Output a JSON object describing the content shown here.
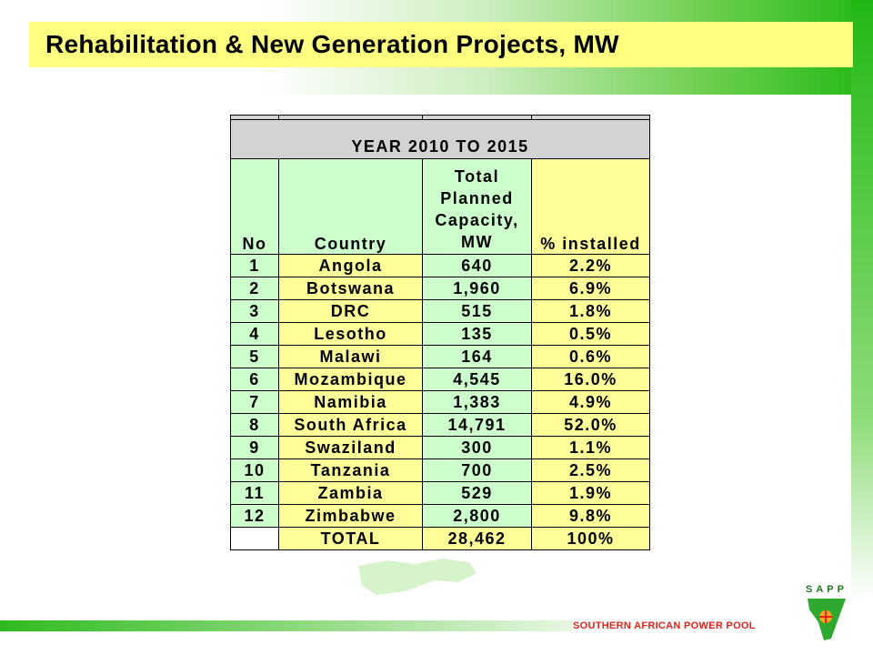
{
  "slide": {
    "title": "Rehabilitation & New Generation Projects, MW",
    "footer": "SOUTHERN AFRICAN POWER POOL",
    "logo_text": "SAPP"
  },
  "colors": {
    "title_bg": "#ffff80",
    "header_green": "#ccffcc",
    "cell_yellow": "#ffff99",
    "value_blue": "#1414e6",
    "percent_red": "#e0141c",
    "brand_green": "#22b814",
    "footer_red": "#e0241c"
  },
  "table": {
    "period": "YEAR 2010 TO 2015",
    "headers": {
      "no": "No",
      "country": "Country",
      "capacity_lines": [
        "Total",
        "Planned",
        "Capacity,",
        "MW"
      ],
      "installed": "% installed"
    },
    "rows": [
      {
        "no": "1",
        "country": "Angola",
        "capacity": "640",
        "installed": "2.2%"
      },
      {
        "no": "2",
        "country": "Botswana",
        "capacity": "1,960",
        "installed": "6.9%"
      },
      {
        "no": "3",
        "country": "DRC",
        "capacity": "515",
        "installed": "1.8%"
      },
      {
        "no": "4",
        "country": "Lesotho",
        "capacity": "135",
        "installed": "0.5%"
      },
      {
        "no": "5",
        "country": "Malawi",
        "capacity": "164",
        "installed": "0.6%"
      },
      {
        "no": "6",
        "country": "Mozambique",
        "capacity": "4,545",
        "installed": "16.0%"
      },
      {
        "no": "7",
        "country": "Namibia",
        "capacity": "1,383",
        "installed": "4.9%"
      },
      {
        "no": "8",
        "country": "South Africa",
        "capacity": "14,791",
        "installed": "52.0%"
      },
      {
        "no": "9",
        "country": "Swaziland",
        "capacity": "300",
        "installed": "1.1%"
      },
      {
        "no": "10",
        "country": "Tanzania",
        "capacity": "700",
        "installed": "2.5%"
      },
      {
        "no": "11",
        "country": "Zambia",
        "capacity": "529",
        "installed": "1.9%"
      },
      {
        "no": "12",
        "country": "Zimbabwe",
        "capacity": "2,800",
        "installed": "9.8%"
      }
    ],
    "total": {
      "label": "TOTAL",
      "capacity": "28,462",
      "installed": "100%"
    }
  }
}
